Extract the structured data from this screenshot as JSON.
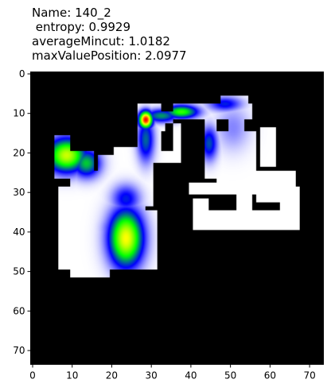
{
  "title_lines": [
    "Name: 140_2",
    " entropy: 0.9929",
    "averageMincut: 1.0182",
    "maxValuePosition: 2.0977"
  ],
  "chart_data": {
    "type": "heatmap",
    "title": "Name: 140_2\n entropy: 0.9929\naverageMincut: 1.0182\nmaxValuePosition: 2.0977",
    "xlabel": "",
    "ylabel": "",
    "xlim": [
      -0.5,
      73.5
    ],
    "ylim": [
      73.5,
      -0.5
    ],
    "grid": false,
    "xticks": [
      0,
      10,
      20,
      30,
      40,
      50,
      60,
      70
    ],
    "yticks": [
      0,
      10,
      20,
      30,
      40,
      50,
      60,
      70
    ],
    "background_color": "#000000",
    "free_space_color": "#ffffff",
    "colormap": [
      "#ffffff",
      "#0000ff",
      "#00ff00",
      "#ffff00",
      "#ff0000"
    ],
    "free_space_rects": [
      [
        6,
        16,
        10,
        27
      ],
      [
        10,
        20,
        16,
        50
      ],
      [
        7,
        29,
        12,
        48
      ],
      [
        7,
        47,
        18,
        50
      ],
      [
        10,
        49,
        20,
        52
      ],
      [
        15,
        25,
        29,
        35
      ],
      [
        16,
        35,
        32,
        50
      ],
      [
        21,
        19,
        28,
        27
      ],
      [
        17,
        21,
        24,
        25
      ],
      [
        27,
        8,
        33,
        23
      ],
      [
        30,
        10,
        34,
        15
      ],
      [
        33,
        10,
        36,
        13
      ],
      [
        36,
        8,
        56,
        12
      ],
      [
        48,
        6,
        55,
        10
      ],
      [
        27,
        20,
        38,
        23
      ],
      [
        24,
        19,
        29,
        26
      ],
      [
        25,
        23,
        31,
        34
      ],
      [
        36,
        13,
        38,
        23
      ],
      [
        44,
        11,
        47,
        27
      ],
      [
        45,
        15,
        57,
        25
      ],
      [
        47,
        23,
        52,
        31
      ],
      [
        50,
        11,
        54,
        20
      ],
      [
        40,
        28,
        54,
        31
      ],
      [
        52,
        25,
        61,
        31
      ],
      [
        52,
        31,
        56,
        36
      ],
      [
        58,
        14,
        62,
        24
      ],
      [
        57,
        25,
        63,
        33
      ],
      [
        59,
        28,
        67,
        31
      ],
      [
        62,
        25,
        67,
        33
      ],
      [
        63,
        29,
        68,
        40
      ],
      [
        41,
        35,
        68,
        40
      ],
      [
        41,
        32,
        45,
        36
      ],
      [
        56,
        35,
        60,
        37
      ]
    ],
    "heat_blobs": [
      {
        "x": 9,
        "y": 21,
        "sx": 3.5,
        "sy": 3,
        "v": 0.7
      },
      {
        "x": 14,
        "y": 23,
        "sx": 2.5,
        "sy": 2.5,
        "v": 0.45
      },
      {
        "x": 24,
        "y": 42,
        "sx": 3,
        "sy": 5,
        "v": 0.75
      },
      {
        "x": 22,
        "y": 40,
        "sx": 2.5,
        "sy": 3,
        "v": 0.35
      },
      {
        "x": 24,
        "y": 32,
        "sx": 2.5,
        "sy": 2.5,
        "v": 0.28
      },
      {
        "x": 29,
        "y": 12,
        "sx": 1.2,
        "sy": 1.5,
        "v": 1.0
      },
      {
        "x": 29,
        "y": 17,
        "sx": 1.5,
        "sy": 4,
        "v": 0.35
      },
      {
        "x": 33,
        "y": 11,
        "sx": 3,
        "sy": 1.2,
        "v": 0.4
      },
      {
        "x": 38,
        "y": 10,
        "sx": 3,
        "sy": 1.2,
        "v": 0.55
      },
      {
        "x": 49,
        "y": 8,
        "sx": 3,
        "sy": 1.3,
        "v": 0.28
      },
      {
        "x": 45,
        "y": 18,
        "sx": 1.5,
        "sy": 3,
        "v": 0.33
      },
      {
        "x": 51,
        "y": 14,
        "sx": 3,
        "sy": 4,
        "v": 0.12
      }
    ]
  }
}
